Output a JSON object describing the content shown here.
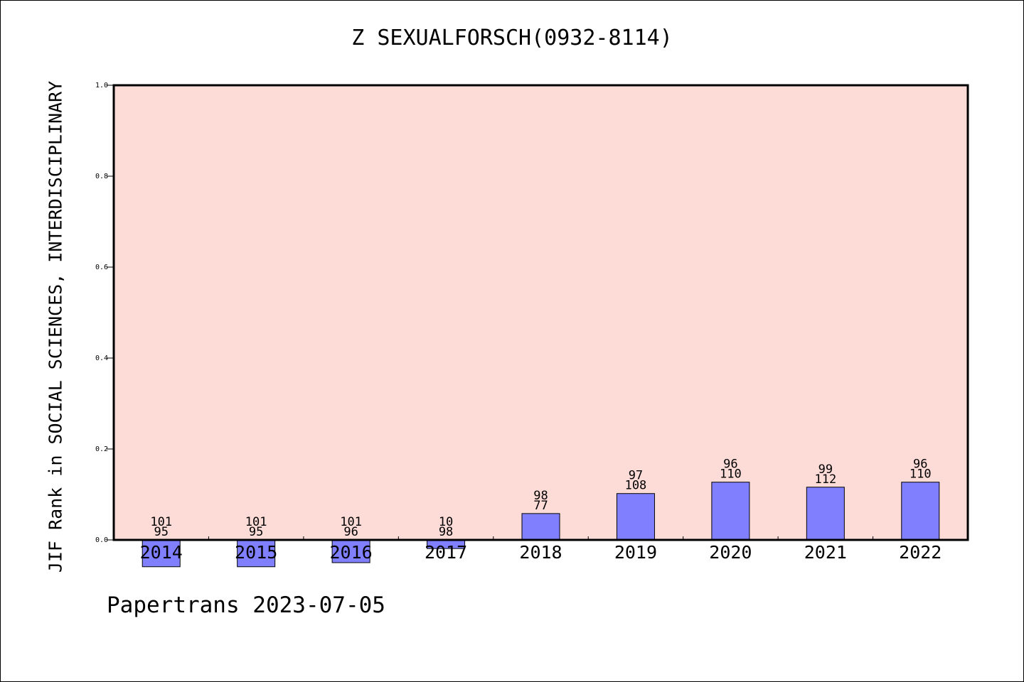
{
  "chart_data": {
    "type": "bar",
    "title": "Z SEXUALFORSCH(0932-8114)",
    "xlabel": "",
    "ylabel": "JIF Rank in SOCIAL SCIENCES, INTERDISCIPLINARY",
    "ylim": [
      0.0,
      1.0
    ],
    "yticks": [
      "0.0",
      "0.2",
      "0.4",
      "0.6",
      "0.8",
      "1.0"
    ],
    "categories": [
      "2014",
      "2015",
      "2016",
      "2017",
      "2018",
      "2019",
      "2020",
      "2021",
      "2022"
    ],
    "values": [
      -0.059,
      -0.059,
      -0.05,
      -0.019,
      0.058,
      0.102,
      0.127,
      0.116,
      0.127
    ],
    "rank_labels": [
      {
        "total": "101",
        "rank": "95"
      },
      {
        "total": "101",
        "rank": "95"
      },
      {
        "total": "101",
        "rank": "96"
      },
      {
        "total": "10",
        "rank": "98"
      },
      {
        "total": "98",
        "rank": "77"
      },
      {
        "total": "97",
        "rank": "108"
      },
      {
        "total": "96",
        "rank": "110"
      },
      {
        "total": "99",
        "rank": "112"
      },
      {
        "total": "96",
        "rank": "110"
      }
    ],
    "grid": false,
    "legend": "none",
    "colors": {
      "plot_bg": "#fddbd7",
      "bar": "#8080ff",
      "axis": "#000000"
    }
  },
  "footer": "Papertrans 2023-07-05"
}
